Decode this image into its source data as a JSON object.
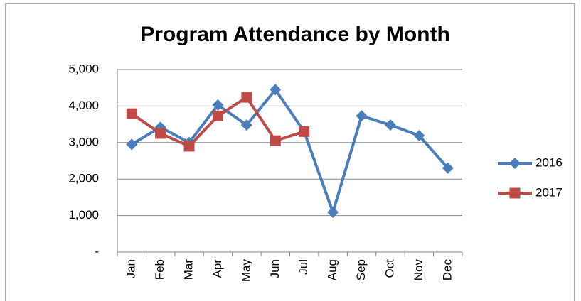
{
  "chart_data": {
    "type": "line",
    "title": "Program Attendance by Month",
    "categories": [
      "Jan",
      "Feb",
      "Mar",
      "Apr",
      "May",
      "Jun",
      "Jul",
      "Aug",
      "Sep",
      "Oct",
      "Nov",
      "Dec"
    ],
    "series": [
      {
        "name": "2016",
        "color": "#4a7ebb",
        "marker": "diamond",
        "values": [
          2950,
          3420,
          3000,
          4030,
          3480,
          4450,
          3300,
          1090,
          3730,
          3480,
          3190,
          2300
        ]
      },
      {
        "name": "2017",
        "color": "#be4b48",
        "marker": "square",
        "values": [
          3790,
          3250,
          2900,
          3730,
          4240,
          3050,
          3300,
          null,
          null,
          null,
          null,
          null
        ]
      }
    ],
    "ylim": [
      0,
      5000
    ],
    "yticks": [
      {
        "value": 0,
        "label": "-"
      },
      {
        "value": 1000,
        "label": "1,000"
      },
      {
        "value": 2000,
        "label": "2,000"
      },
      {
        "value": 3000,
        "label": "3,000"
      },
      {
        "value": 4000,
        "label": "4,000"
      },
      {
        "value": 5000,
        "label": "5,000"
      }
    ],
    "grid": true,
    "legend": "right"
  }
}
